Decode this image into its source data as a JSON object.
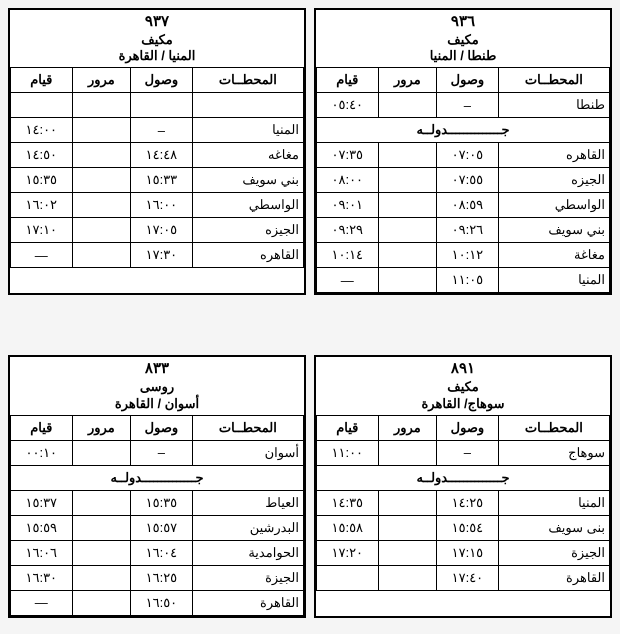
{
  "labels": {
    "stations": "المحطــات",
    "arrive": "وصول",
    "pass": "مرور",
    "depart": "قيام",
    "jadwal": "جــــــــــــــدولــه"
  },
  "tables": [
    {
      "number": "٩٣٦",
      "type": "مكيف",
      "route": "طنطا / المنيا",
      "rows": [
        {
          "station": "طنطا",
          "arrive": "–",
          "pass": "",
          "depart": "٠٥:٤٠",
          "full": false
        },
        {
          "jadwal": true
        },
        {
          "station": "القاهره",
          "arrive": "٠٧:٠٥",
          "pass": "",
          "depart": "٠٧:٣٥",
          "full": false
        },
        {
          "station": "الجيزه",
          "arrive": "٠٧:٥٥",
          "pass": "",
          "depart": "٠٨:٠٠",
          "full": false
        },
        {
          "station": "الواسطي",
          "arrive": "٠٨:٥٩",
          "pass": "",
          "depart": "٠٩:٠١",
          "full": false
        },
        {
          "station": "بني سويف",
          "arrive": "٠٩:٢٦",
          "pass": "",
          "depart": "٠٩:٢٩",
          "full": false
        },
        {
          "station": "مغاغة",
          "arrive": "١٠:١٢",
          "pass": "",
          "depart": "١٠:١٤",
          "full": false
        },
        {
          "station": "المنيا",
          "arrive": "١١:٠٥",
          "pass": "",
          "depart": "—",
          "full": false
        }
      ]
    },
    {
      "number": "٩٣٧",
      "type": "مكيف",
      "route": "المنيا / القاهرة",
      "rows": [
        {
          "blank": true
        },
        {
          "station": "المنيا",
          "arrive": "–",
          "pass": "",
          "depart": "١٤:٠٠",
          "full": false
        },
        {
          "station": "مغاغه",
          "arrive": "١٤:٤٨",
          "pass": "",
          "depart": "١٤:٥٠",
          "full": false
        },
        {
          "station": "بني سويف",
          "arrive": "١٥:٣٣",
          "pass": "",
          "depart": "١٥:٣٥",
          "full": false
        },
        {
          "station": "الواسطي",
          "arrive": "١٦:٠٠",
          "pass": "",
          "depart": "١٦:٠٢",
          "full": false
        },
        {
          "station": "الجيزه",
          "arrive": "١٧:٠٥",
          "pass": "",
          "depart": "١٧:١٠",
          "full": false
        },
        {
          "station": "القاهره",
          "arrive": "١٧:٣٠",
          "pass": "",
          "depart": "—",
          "full": false
        }
      ]
    },
    {
      "number": "٨٩١",
      "type": "مكيف",
      "route": "سوهاج/ القاهرة",
      "rows": [
        {
          "station": "سوهاج",
          "arrive": "–",
          "pass": "",
          "depart": "١١:٠٠",
          "full": false
        },
        {
          "jadwal": true
        },
        {
          "station": "المنيا",
          "arrive": "١٤:٢٥",
          "pass": "",
          "depart": "١٤:٣٥",
          "full": false
        },
        {
          "station": "بنى سويف",
          "arrive": "١٥:٥٤",
          "pass": "",
          "depart": "١٥:٥٨",
          "full": false
        },
        {
          "station": "الجيزة",
          "arrive": "١٧:١٥",
          "pass": "",
          "depart": "١٧:٢٠",
          "full": false
        },
        {
          "station": "القاهرة",
          "arrive": "١٧:٤٠",
          "pass": "",
          "depart": "",
          "full": false
        }
      ]
    },
    {
      "number": "٨٣٣",
      "type": "روسى",
      "route": "أسوان / القاهرة",
      "rows": [
        {
          "station": "أسوان",
          "arrive": "–",
          "pass": "",
          "depart": "٠٠:١٠",
          "full": false
        },
        {
          "jadwal": true
        },
        {
          "station": "العياط",
          "arrive": "١٥:٣٥",
          "pass": "",
          "depart": "١٥:٣٧",
          "full": false
        },
        {
          "station": "البدرشين",
          "arrive": "١٥:٥٧",
          "pass": "",
          "depart": "١٥:٥٩",
          "full": false
        },
        {
          "station": "الحوامدية",
          "arrive": "١٦:٠٤",
          "pass": "",
          "depart": "١٦:٠٦",
          "full": false
        },
        {
          "station": "الجيزة",
          "arrive": "١٦:٢٥",
          "pass": "",
          "depart": "١٦:٣٠",
          "full": false
        },
        {
          "station": "القاهرة",
          "arrive": "١٦:٥٠",
          "pass": "",
          "depart": "—",
          "full": false
        }
      ]
    }
  ]
}
